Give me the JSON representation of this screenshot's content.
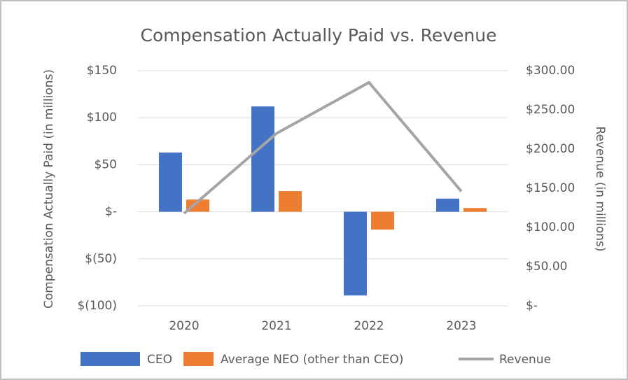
{
  "chart_data": {
    "type": "bar_line",
    "title": "Compensation Actually Paid vs. Revenue",
    "y_label": "Compensation Actually Paid (in millions)",
    "y2_label": "Revenue (in millions)",
    "categories": [
      "2020",
      "2021",
      "2022",
      "2023"
    ],
    "series": [
      {
        "name": "CEO",
        "type": "bar",
        "color": "#4472c4",
        "values": [
          63,
          112,
          -89,
          14
        ]
      },
      {
        "name": "Average NEO (other than CEO)",
        "type": "bar",
        "color": "#ed7d31",
        "values": [
          13,
          22,
          -19,
          4
        ]
      },
      {
        "name": "Revenue",
        "type": "line",
        "axis": "y2",
        "color": "#a5a5a5",
        "values": [
          118,
          220,
          285,
          146
        ]
      }
    ],
    "ylim": [
      -100,
      150
    ],
    "yticks": [
      {
        "value": -100,
        "label": "$(100)"
      },
      {
        "value": -50,
        "label": "$(50)"
      },
      {
        "value": 0,
        "label": "$-"
      },
      {
        "value": 50,
        "label": "$50"
      },
      {
        "value": 100,
        "label": "$100"
      },
      {
        "value": 150,
        "label": "$150"
      }
    ],
    "y2lim": [
      0,
      300
    ],
    "y2ticks": [
      {
        "value": 0,
        "label": "$-"
      },
      {
        "value": 50,
        "label": "$50.00"
      },
      {
        "value": 100,
        "label": "$100.00"
      },
      {
        "value": 150,
        "label": "$150.00"
      },
      {
        "value": 200,
        "label": "$200.00"
      },
      {
        "value": 250,
        "label": "$250.00"
      },
      {
        "value": 300,
        "label": "$300.00"
      }
    ],
    "grid": true,
    "legend": "bottom"
  }
}
